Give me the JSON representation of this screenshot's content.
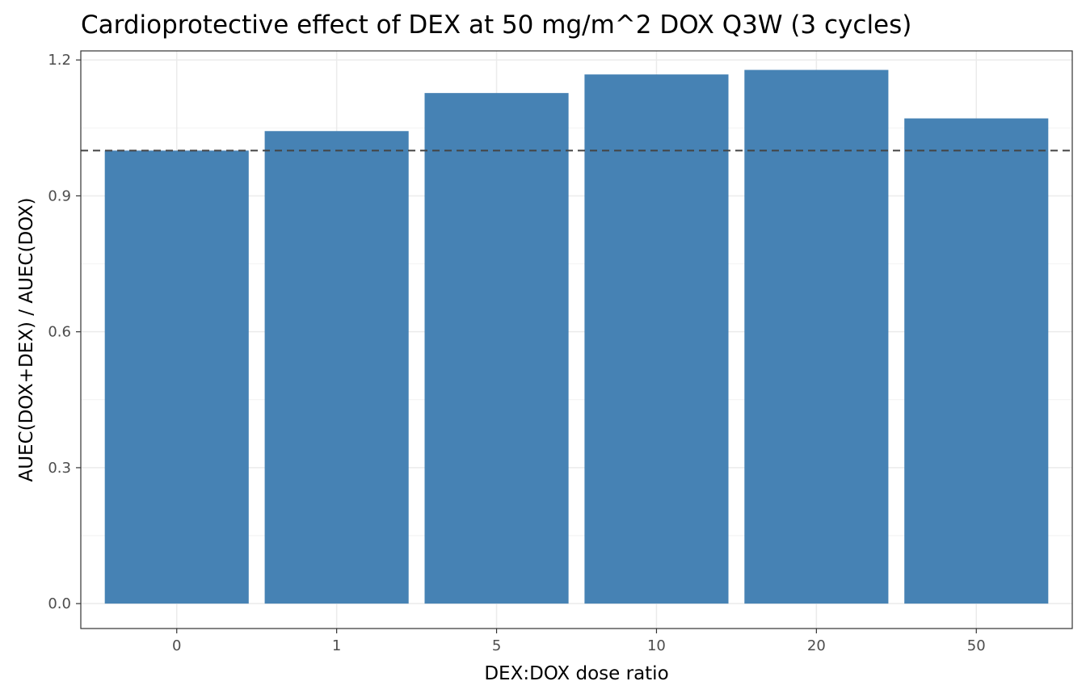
{
  "chart_data": {
    "type": "bar",
    "title": "Cardioprotective effect of DEX at 50 mg/m^2 DOX Q3W (3 cycles)",
    "xlabel": "DEX:DOX dose ratio",
    "ylabel": "AUEC(DOX+DEX) / AUEC(DOX)",
    "categories": [
      "0",
      "1",
      "5",
      "10",
      "20",
      "50"
    ],
    "values": [
      1.0,
      1.043,
      1.127,
      1.168,
      1.178,
      1.071
    ],
    "ylim": [
      -0.055,
      1.22
    ],
    "yticks": [
      0.0,
      0.3,
      0.6,
      0.9,
      1.2
    ],
    "ytick_labels": [
      "0.0",
      "0.3",
      "0.6",
      "0.9",
      "1.2"
    ],
    "reference_line": {
      "y": 1.0,
      "style": "dashed",
      "color": "#444444"
    },
    "bar_color": "#4682B4",
    "grid": true,
    "legend": "none",
    "panel_border": true
  }
}
